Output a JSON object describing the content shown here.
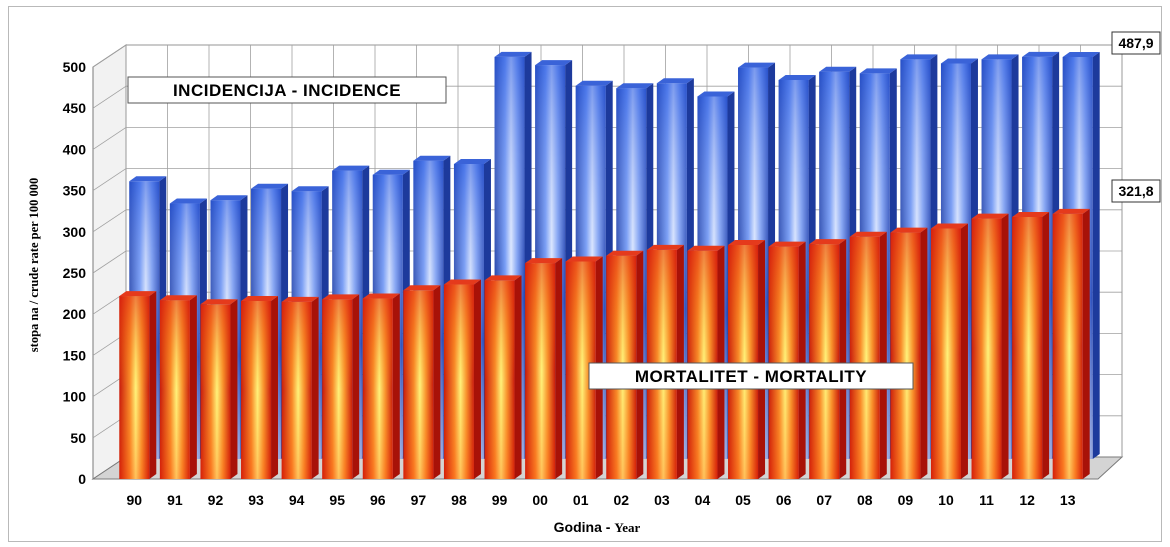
{
  "chart_data": {
    "type": "bar",
    "style": "3d-clustered",
    "categories": [
      "90",
      "91",
      "92",
      "93",
      "94",
      "95",
      "96",
      "97",
      "98",
      "99",
      "00",
      "01",
      "02",
      "03",
      "04",
      "05",
      "06",
      "07",
      "08",
      "09",
      "10",
      "11",
      "12",
      "13"
    ],
    "series": [
      {
        "name": "INCIDENCIJA - INCIDENCE",
        "color": "#3f6fe6",
        "values": [
          337,
          310,
          314,
          328,
          325,
          350,
          345,
          362,
          358,
          488,
          478,
          453,
          450,
          456,
          440,
          475,
          460,
          470,
          468,
          485,
          480,
          485,
          488,
          487.9
        ]
      },
      {
        "name": "MORTALITET - MORTALITY",
        "color": "#e8321a",
        "values": [
          222,
          217,
          212,
          216,
          215,
          218,
          219,
          229,
          236,
          241,
          262,
          264,
          271,
          278,
          277,
          284,
          282,
          285,
          294,
          299,
          304,
          316,
          318,
          321.8
        ]
      }
    ],
    "data_labels": [
      {
        "series": "INCIDENCIJA - INCIDENCE",
        "category": "13",
        "text": "487,9"
      },
      {
        "series": "MORTALITET - MORTALITY",
        "category": "13",
        "text": "321,8"
      }
    ],
    "yticks": [
      "0",
      "50",
      "100",
      "150",
      "200",
      "250",
      "300",
      "350",
      "400",
      "450",
      "500"
    ],
    "ylim": [
      0,
      500
    ],
    "ylabel": "stopa na / crude rate per 100 000",
    "xlabel_main": "Godina - ",
    "xlabel_sub": "Year",
    "grid": true,
    "legend": "inside-labels"
  }
}
